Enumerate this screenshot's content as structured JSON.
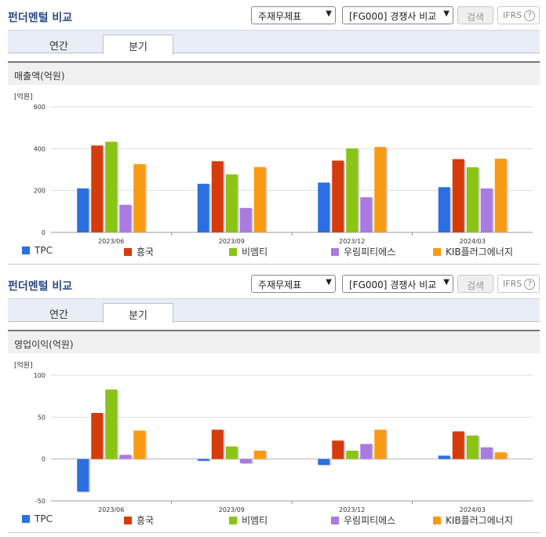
{
  "panels": [
    {
      "title": "펀더멘털 비교",
      "select1": "주재무제표",
      "select2": "[FG000] 경쟁사 비교",
      "search_label": "검색",
      "ifrs_label": "IFRS",
      "tabs": [
        "연간",
        "분기"
      ],
      "active_tab": 1,
      "chart_heading": "매출액(억원)"
    },
    {
      "title": "펀더멘털 비교",
      "select1": "주재무제표",
      "select2": "[FG000] 경쟁사 비교",
      "search_label": "검색",
      "ifrs_label": "IFRS",
      "tabs": [
        "연간",
        "분기"
      ],
      "active_tab": 1,
      "chart_heading": "영업이익(억원)"
    }
  ],
  "chart_data": [
    {
      "type": "bar",
      "unit_label": "[억원]",
      "categories": [
        "2023/06",
        "2023/09",
        "2023/12",
        "2024/03"
      ],
      "ylim": [
        0,
        600
      ],
      "yticks": [
        0,
        200,
        400,
        600
      ],
      "grid": true,
      "legend_position": "bottom",
      "series": [
        {
          "name": "TPC",
          "color": "#2b6fe0",
          "values": [
            210,
            232,
            238,
            216
          ]
        },
        {
          "name": "흥국",
          "color": "#d63b0b",
          "values": [
            415,
            340,
            343,
            350
          ]
        },
        {
          "name": "비엠티",
          "color": "#8ac414",
          "values": [
            433,
            277,
            401,
            311
          ]
        },
        {
          "name": "우림피티에스",
          "color": "#a97be0",
          "values": [
            132,
            117,
            168,
            210
          ]
        },
        {
          "name": "KIB플러그에너지",
          "color": "#f99b12",
          "values": [
            326,
            312,
            408,
            352
          ]
        }
      ]
    },
    {
      "type": "bar",
      "unit_label": "[억원]",
      "categories": [
        "2023/06",
        "2023/09",
        "2023/12",
        "2024/03"
      ],
      "ylim": [
        -50,
        100
      ],
      "yticks": [
        -50,
        0,
        50,
        100
      ],
      "grid": true,
      "legend_position": "bottom",
      "series": [
        {
          "name": "TPC",
          "color": "#2b6fe0",
          "values": [
            -39,
            -2,
            -7,
            4
          ]
        },
        {
          "name": "흥국",
          "color": "#d63b0b",
          "values": [
            55,
            35,
            22,
            33
          ]
        },
        {
          "name": "비엠티",
          "color": "#8ac414",
          "values": [
            83,
            15,
            10,
            28
          ]
        },
        {
          "name": "우림피티에스",
          "color": "#a97be0",
          "values": [
            5,
            -5,
            18,
            14
          ]
        },
        {
          "name": "KIB플러그에너지",
          "color": "#f99b12",
          "values": [
            34,
            10,
            35,
            8
          ]
        }
      ]
    }
  ]
}
